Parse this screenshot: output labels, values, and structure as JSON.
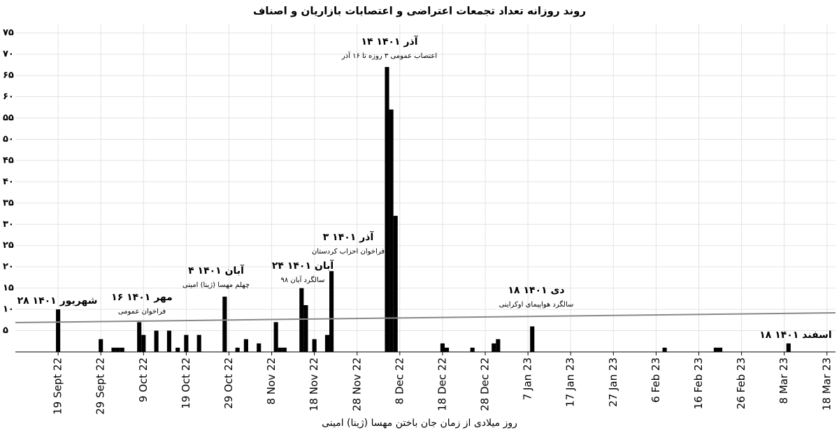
{
  "chart_data": {
    "type": "bar",
    "title": "روند روزانه تعداد تجمعات اعتراضی و اعتصابات بازاریان و اصناف",
    "x_label": "روز میلادی از زمان جان باختن مهسا (ژینا) امینی",
    "color": "#000000",
    "grid": true,
    "x": [
      "2022-09-19",
      "2022-09-29",
      "2022-10-02",
      "2022-10-03",
      "2022-10-04",
      "2022-10-08",
      "2022-10-09",
      "2022-10-12",
      "2022-10-15",
      "2022-10-17",
      "2022-10-19",
      "2022-10-22",
      "2022-10-28",
      "2022-10-31",
      "2022-11-02",
      "2022-11-05",
      "2022-11-09",
      "2022-11-10",
      "2022-11-11",
      "2022-11-15",
      "2022-11-16",
      "2022-11-18",
      "2022-11-21",
      "2022-11-22",
      "2022-12-05",
      "2022-12-06",
      "2022-12-07",
      "2022-12-18",
      "2022-12-19",
      "2022-12-25",
      "2022-12-30",
      "2022-12-31",
      "2023-01-08",
      "2023-02-08",
      "2023-02-20",
      "2023-02-21",
      "2023-03-09"
    ],
    "values": [
      10,
      3,
      1,
      1,
      1,
      7,
      4,
      5,
      5,
      1,
      4,
      4,
      13,
      1,
      3,
      2,
      7,
      1,
      1,
      15,
      11,
      3,
      4,
      19,
      67,
      57,
      32,
      2,
      1,
      1,
      2,
      3,
      6,
      1,
      1,
      1,
      2
    ],
    "trend": {
      "x": [
        "2022-09-09",
        "2023-03-20"
      ],
      "values": [
        6.9,
        9.2
      ],
      "color": "#888888"
    },
    "xlim": [
      "2022-09-09",
      "2023-03-20"
    ],
    "xticks": [
      {
        "value": "2022-09-19",
        "label": "19 Sept 22"
      },
      {
        "value": "2022-09-29",
        "label": "29 Sept 22"
      },
      {
        "value": "2022-10-09",
        "label": "9 Oct 22"
      },
      {
        "value": "2022-10-19",
        "label": "19 Oct 22"
      },
      {
        "value": "2022-10-29",
        "label": "29 Oct 22"
      },
      {
        "value": "2022-11-08",
        "label": "8 Nov 22"
      },
      {
        "value": "2022-11-18",
        "label": "18 Nov 22"
      },
      {
        "value": "2022-11-28",
        "label": "28 Nov 22"
      },
      {
        "value": "2022-12-08",
        "label": "8 Dec 22"
      },
      {
        "value": "2022-12-18",
        "label": "18 Dec 22"
      },
      {
        "value": "2022-12-28",
        "label": "28 Dec 22"
      },
      {
        "value": "2023-01-07",
        "label": "7 Jan 23"
      },
      {
        "value": "2023-01-17",
        "label": "17 Jan 23"
      },
      {
        "value": "2023-01-27",
        "label": "27 Jan 23"
      },
      {
        "value": "2023-02-06",
        "label": "6 Feb 23"
      },
      {
        "value": "2023-02-16",
        "label": "16 Feb 23"
      },
      {
        "value": "2023-02-26",
        "label": "26 Feb 23"
      },
      {
        "value": "2023-03-08",
        "label": "8 Mar 23"
      },
      {
        "value": "2023-03-18",
        "label": "18 Mar 23"
      }
    ],
    "ylim": [
      0,
      77
    ],
    "yticks": [
      {
        "value": 5,
        "label": "۵"
      },
      {
        "value": 10,
        "label": "۱۰"
      },
      {
        "value": 15,
        "label": "۱۵"
      },
      {
        "value": 20,
        "label": "۲۰"
      },
      {
        "value": 25,
        "label": "۲۵"
      },
      {
        "value": 30,
        "label": "۳۰"
      },
      {
        "value": 35,
        "label": "۳۵"
      },
      {
        "value": 40,
        "label": "۴۰"
      },
      {
        "value": 45,
        "label": "۴۵"
      },
      {
        "value": 50,
        "label": "۵۰"
      },
      {
        "value": 55,
        "label": "۵۵"
      },
      {
        "value": 60,
        "label": "۶۰"
      },
      {
        "value": 65,
        "label": "۶۵"
      },
      {
        "value": 70,
        "label": "۷۰"
      },
      {
        "value": 75,
        "label": "۷۵"
      }
    ],
    "annotations": [
      {
        "title": "۲۸ شهریور ۱۴۰۱"
      },
      {
        "title": "۱۶ مهر ۱۴۰۱",
        "text": "فراخوان عمومی"
      },
      {
        "title": "۴ آبان ۱۴۰۱",
        "text": "چهلم مهسا (ژینا) امینی"
      },
      {
        "title": "۲۴ آبان ۱۴۰۱",
        "text": "سالگرد آبان ۹۸"
      },
      {
        "title": "۳ آذر ۱۴۰۱",
        "text": "فراخوان احزاب کردستان"
      },
      {
        "title": "۱۴ آذر ۱۴۰۱",
        "text": "اعتصاب عمومی ۳ روزه تا ۱۶ آذر"
      },
      {
        "title": "۱۸ دی ۱۴۰۱",
        "text": "سالگرد هواپیمای اوکراینی"
      },
      {
        "title": "۱۸ اسفند ۱۴۰۱"
      }
    ]
  }
}
